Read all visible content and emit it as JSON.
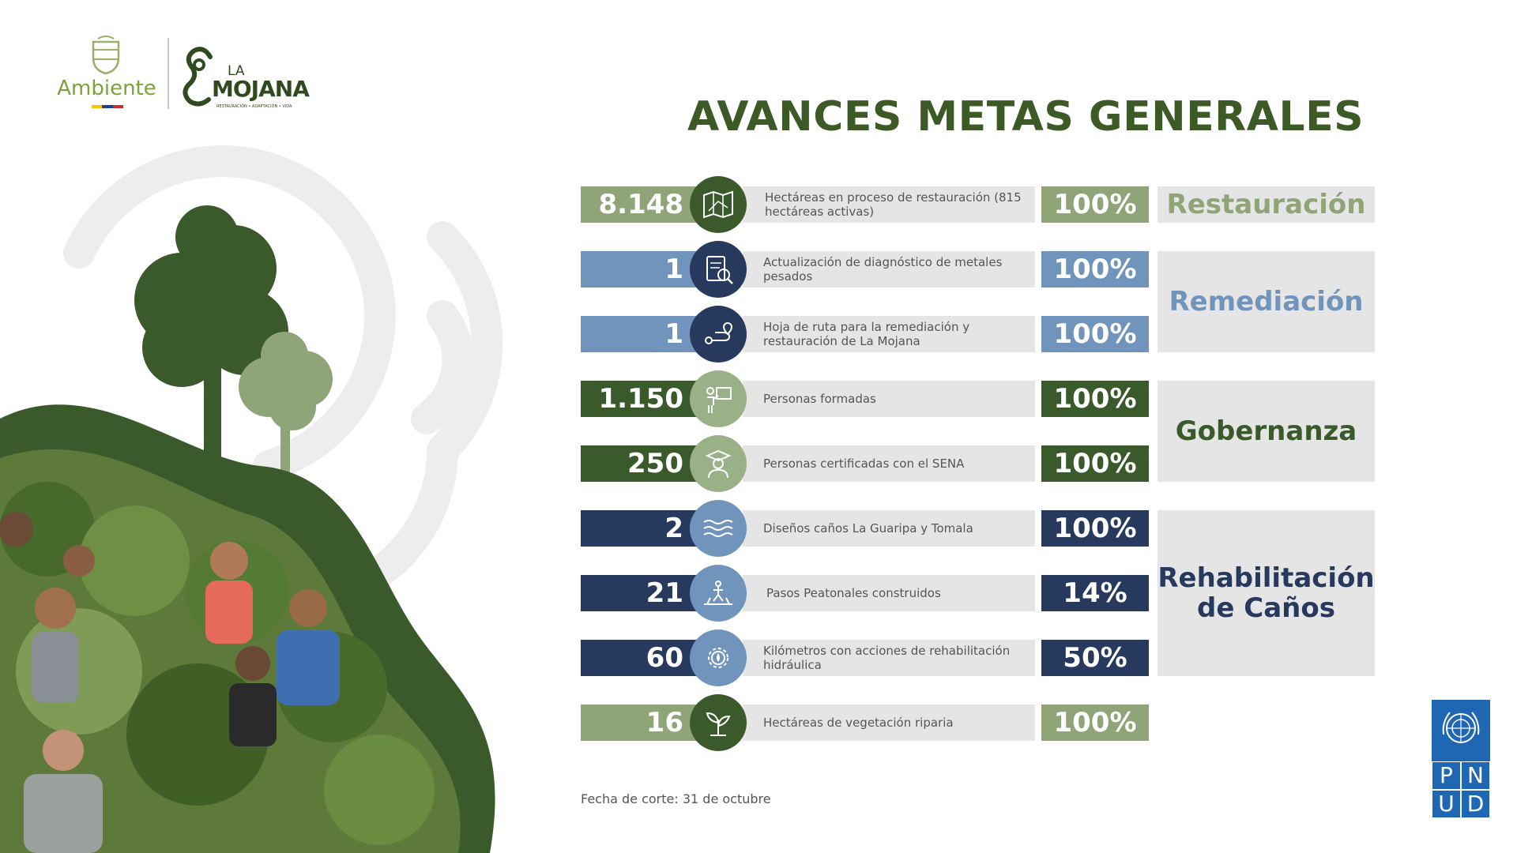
{
  "header": {
    "logo_ambiente_text": "Ambiente",
    "logo_mojana_la": "LA",
    "logo_mojana_name": "MOJANA",
    "logo_mojana_tagline": "RESTAURACIÓN • ADAPTACIÓN • VIDA",
    "title": "AVANCES METAS GENERALES"
  },
  "colors": {
    "title_green": "#3b5a25",
    "light_green": "#8fa578",
    "steel_blue": "#7194bd",
    "dark_green": "#3b5a2b",
    "navy": "#27395c",
    "panel_gray": "#e5e5e5",
    "pnud_blue": "#1f66b3"
  },
  "rows": [
    {
      "value": "8.148",
      "icon": "map-icon",
      "description": "Hectáreas en proceso de restauración (815 hectáreas activas)",
      "percent": "100%"
    },
    {
      "value": "1",
      "icon": "diagnosis-document-icon",
      "description": "Actualización de diagnóstico de metales pesados",
      "percent": "100%"
    },
    {
      "value": "1",
      "icon": "route-icon",
      "description": "Hoja de ruta para la remediación y restauración de La Mojana",
      "percent": "100%"
    },
    {
      "value": "1.150",
      "icon": "teacher-icon",
      "description": "Personas formadas",
      "percent": "100%"
    },
    {
      "value": "250",
      "icon": "graduate-icon",
      "description": "Personas certificadas con el SENA",
      "percent": "100%"
    },
    {
      "value": "2",
      "icon": "water-waves-icon",
      "description": "Diseños caños La Guaripa y Tomala",
      "percent": "100%"
    },
    {
      "value": "21",
      "icon": "footbridge-icon",
      "description": "Pasos Peatonales construidos",
      "percent": "14%"
    },
    {
      "value": "60",
      "icon": "hydraulic-gear-icon",
      "description": "Kilómetros con acciones de rehabilitación hidráulica",
      "percent": "50%"
    },
    {
      "value": "16",
      "icon": "plant-sprout-icon",
      "description": "Hectáreas de vegetación riparia",
      "percent": "100%"
    }
  ],
  "categories": [
    {
      "label": "Restauración"
    },
    {
      "label": "Remediación"
    },
    {
      "label": "Gobernanza"
    },
    {
      "label": "Rehabilitación de Caños"
    }
  ],
  "footnote": "Fecha de corte: 31 de octubre",
  "pnud": {
    "letters": [
      "P",
      "N",
      "U",
      "D"
    ]
  }
}
